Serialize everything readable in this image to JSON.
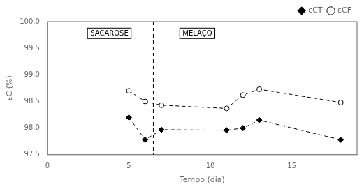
{
  "chart_data": {
    "type": "line",
    "xlabel": "Tempo (dia)",
    "ylabel": "εC (%)",
    "x": [
      5,
      6,
      7,
      11,
      12,
      13,
      18
    ],
    "series": [
      {
        "name": "εCT",
        "color": "#000000",
        "marker": "diamond",
        "line_style": "dashed",
        "values": [
          98.2,
          97.78,
          97.97,
          97.96,
          98.0,
          98.15,
          97.78
        ]
      },
      {
        "name": "εCF",
        "color": "#000000",
        "marker": "circle_open",
        "line_style": "dashed",
        "values": [
          98.7,
          98.5,
          98.43,
          98.37,
          98.62,
          98.73,
          98.48
        ]
      }
    ],
    "xlim": [
      0,
      19
    ],
    "ylim": [
      97.5,
      100.0
    ],
    "xticks": [
      0,
      5,
      10,
      15
    ],
    "yticks": [
      97.5,
      {
        "value": 98,
        "label": "98.0"
      },
      98.5,
      {
        "value": 99,
        "label": "99.0"
      },
      99.5,
      {
        "value": 100,
        "label": "100.0"
      }
    ],
    "annotations": [
      {
        "type": "vline",
        "x": 6.5,
        "color": "#000000",
        "line_style": "dashed"
      },
      {
        "type": "text",
        "text": "SACAROSE",
        "x": 3.8,
        "y": 99.78
      },
      {
        "type": "text",
        "text": "MELAÇO",
        "x": 9.2,
        "y": 99.78
      }
    ],
    "legend": "upper right",
    "grid": false
  }
}
